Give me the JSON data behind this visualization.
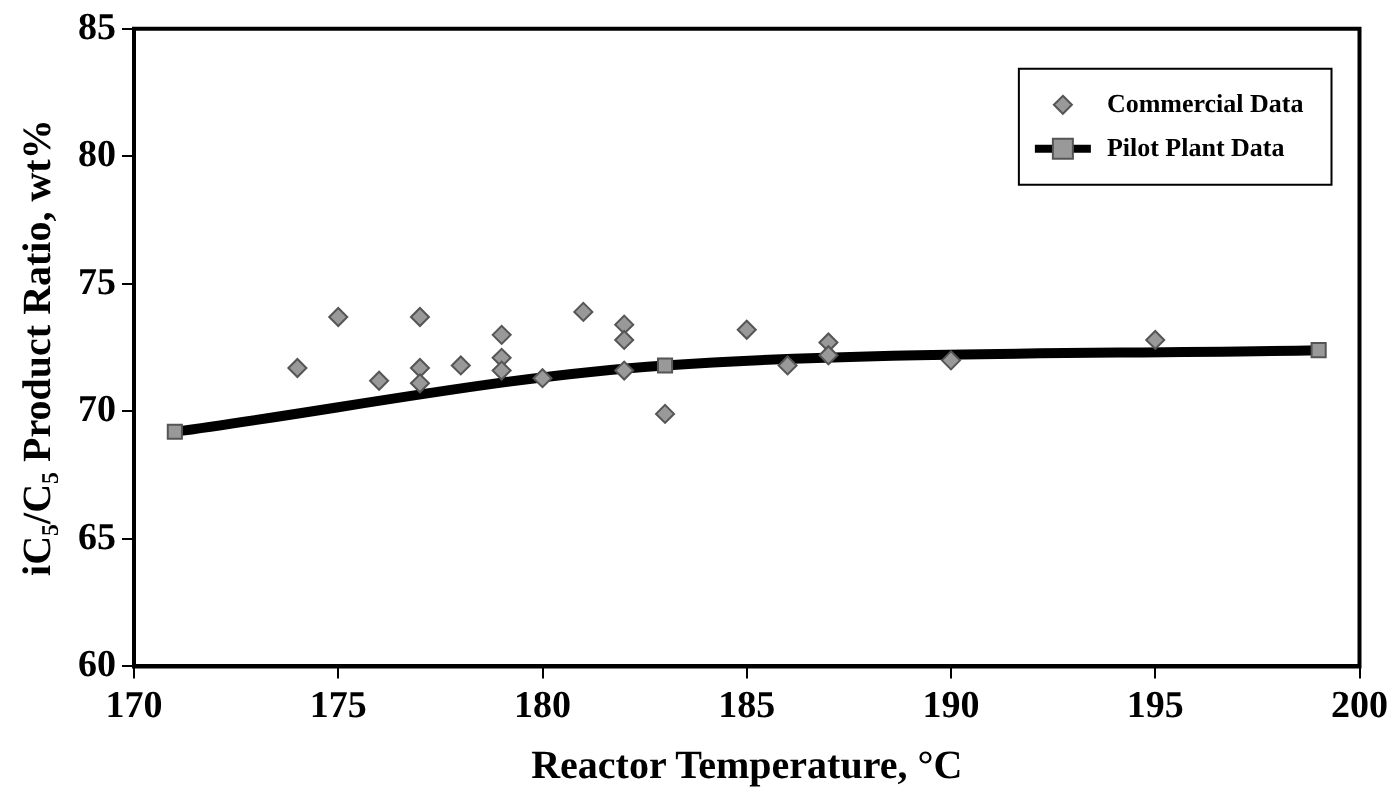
{
  "chart_data": {
    "type": "scatter",
    "xlabel": "Reactor Temperature, °C",
    "ylabel": "iC₅/C₅ Product Ratio, wt%",
    "xlim": [
      170,
      200
    ],
    "xticks": [
      170,
      175,
      180,
      185,
      190,
      195,
      200
    ],
    "ylim": [
      60,
      85
    ],
    "yticks": [
      60,
      65,
      70,
      75,
      80,
      85
    ],
    "grid": false,
    "legend": "top right",
    "series": [
      {
        "name": "Commercial Data",
        "type": "scatter",
        "marker": "diamond",
        "color": "#999999",
        "x": [
          174,
          175,
          176,
          177,
          177,
          177,
          178,
          179,
          179,
          179,
          180,
          181,
          182,
          182,
          182,
          183,
          185,
          186,
          187,
          187,
          190,
          195
        ],
        "values": [
          71.7,
          73.7,
          71.2,
          73.7,
          71.7,
          71.1,
          71.8,
          73.0,
          72.1,
          71.6,
          71.3,
          73.9,
          73.4,
          72.8,
          71.6,
          69.9,
          73.2,
          71.8,
          72.7,
          72.2,
          72.0,
          72.8
        ]
      },
      {
        "name": "Pilot Plant Data",
        "type": "line",
        "marker": "square",
        "line_style": "solid",
        "color": "#000000",
        "x": [
          171,
          183,
          199
        ],
        "values": [
          69.2,
          71.8,
          72.4
        ]
      }
    ]
  }
}
